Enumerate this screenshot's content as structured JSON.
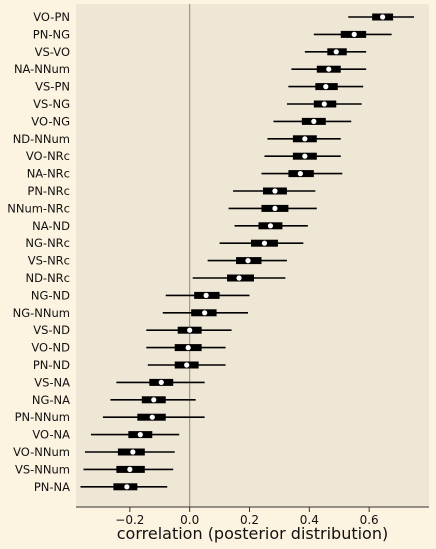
{
  "chart_data": {
    "type": "forest",
    "xlabel": "correlation (posterior distribution)",
    "xlim": [
      -0.38,
      0.8
    ],
    "xticks": [
      -0.2,
      0.0,
      0.2,
      0.4,
      0.6
    ],
    "xtick_labels": [
      "−0.2",
      "0.0",
      "0.2",
      "0.4",
      "0.6"
    ],
    "reference_line": 0.0,
    "rows": [
      {
        "label": "VO-PN",
        "median": 0.645,
        "q25": 0.61,
        "q75": 0.68,
        "lo": 0.53,
        "hi": 0.75
      },
      {
        "label": "PN-NG",
        "median": 0.55,
        "q25": 0.505,
        "q75": 0.59,
        "lo": 0.415,
        "hi": 0.675
      },
      {
        "label": "VS-VO",
        "median": 0.49,
        "q25": 0.46,
        "q75": 0.525,
        "lo": 0.385,
        "hi": 0.59
      },
      {
        "label": "NA-NNum",
        "median": 0.465,
        "q25": 0.425,
        "q75": 0.505,
        "lo": 0.34,
        "hi": 0.59
      },
      {
        "label": "VS-PN",
        "median": 0.455,
        "q25": 0.42,
        "q75": 0.495,
        "lo": 0.33,
        "hi": 0.58
      },
      {
        "label": "VS-NG",
        "median": 0.45,
        "q25": 0.415,
        "q75": 0.49,
        "lo": 0.325,
        "hi": 0.575
      },
      {
        "label": "VO-NG",
        "median": 0.415,
        "q25": 0.375,
        "q75": 0.455,
        "lo": 0.28,
        "hi": 0.54
      },
      {
        "label": "ND-NNum",
        "median": 0.385,
        "q25": 0.345,
        "q75": 0.425,
        "lo": 0.26,
        "hi": 0.505
      },
      {
        "label": "VO-NRc",
        "median": 0.385,
        "q25": 0.345,
        "q75": 0.425,
        "lo": 0.25,
        "hi": 0.505
      },
      {
        "label": "NA-NRc",
        "median": 0.37,
        "q25": 0.33,
        "q75": 0.415,
        "lo": 0.24,
        "hi": 0.51
      },
      {
        "label": "PN-NRc",
        "median": 0.285,
        "q25": 0.245,
        "q75": 0.325,
        "lo": 0.145,
        "hi": 0.42
      },
      {
        "label": "NNum-NRc",
        "median": 0.285,
        "q25": 0.24,
        "q75": 0.33,
        "lo": 0.13,
        "hi": 0.425
      },
      {
        "label": "NA-ND",
        "median": 0.27,
        "q25": 0.23,
        "q75": 0.31,
        "lo": 0.15,
        "hi": 0.395
      },
      {
        "label": "NG-NRc",
        "median": 0.25,
        "q25": 0.205,
        "q75": 0.295,
        "lo": 0.1,
        "hi": 0.38
      },
      {
        "label": "VS-NRc",
        "median": 0.195,
        "q25": 0.155,
        "q75": 0.24,
        "lo": 0.06,
        "hi": 0.325
      },
      {
        "label": "ND-NRc",
        "median": 0.165,
        "q25": 0.125,
        "q75": 0.215,
        "lo": 0.01,
        "hi": 0.32
      },
      {
        "label": "NG-ND",
        "median": 0.055,
        "q25": 0.015,
        "q75": 0.1,
        "lo": -0.08,
        "hi": 0.2
      },
      {
        "label": "NG-NNum",
        "median": 0.05,
        "q25": 0.005,
        "q75": 0.09,
        "lo": -0.09,
        "hi": 0.195
      },
      {
        "label": "VS-ND",
        "median": 0.0,
        "q25": -0.04,
        "q75": 0.04,
        "lo": -0.145,
        "hi": 0.14
      },
      {
        "label": "VO-ND",
        "median": -0.005,
        "q25": -0.05,
        "q75": 0.04,
        "lo": -0.145,
        "hi": 0.12
      },
      {
        "label": "PN-ND",
        "median": -0.01,
        "q25": -0.05,
        "q75": 0.03,
        "lo": -0.14,
        "hi": 0.12
      },
      {
        "label": "VS-NA",
        "median": -0.095,
        "q25": -0.135,
        "q75": -0.055,
        "lo": -0.245,
        "hi": 0.05
      },
      {
        "label": "NG-NA",
        "median": -0.12,
        "q25": -0.16,
        "q75": -0.08,
        "lo": -0.265,
        "hi": 0.02
      },
      {
        "label": "PN-NNum",
        "median": -0.125,
        "q25": -0.175,
        "q75": -0.08,
        "lo": -0.29,
        "hi": 0.05
      },
      {
        "label": "VO-NA",
        "median": -0.165,
        "q25": -0.205,
        "q75": -0.125,
        "lo": -0.33,
        "hi": -0.035
      },
      {
        "label": "VO-NNum",
        "median": -0.19,
        "q25": -0.24,
        "q75": -0.15,
        "lo": -0.35,
        "hi": -0.05
      },
      {
        "label": "VS-NNum",
        "median": -0.2,
        "q25": -0.245,
        "q75": -0.15,
        "lo": -0.355,
        "hi": -0.055
      },
      {
        "label": "PN-NA",
        "median": -0.21,
        "q25": -0.255,
        "q75": -0.175,
        "lo": -0.365,
        "hi": -0.075
      }
    ]
  }
}
